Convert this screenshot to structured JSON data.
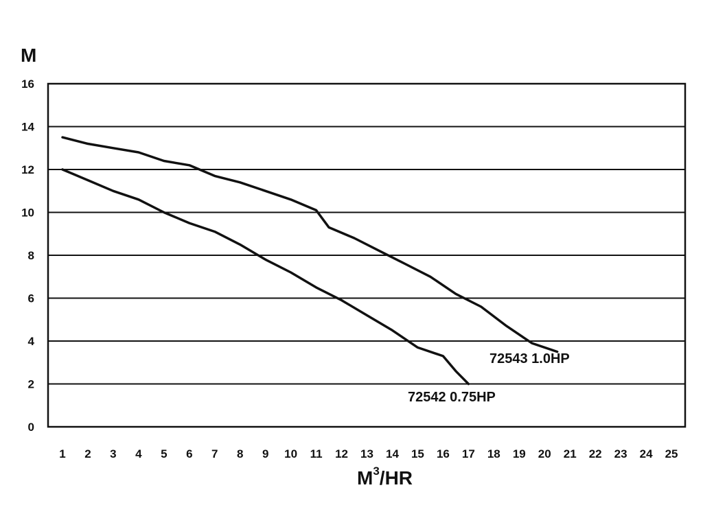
{
  "chart_data": {
    "type": "line",
    "title": "",
    "xlabel_main": "M",
    "xlabel_sup": "3",
    "xlabel_tail": "/HR",
    "ylabel": "M",
    "xlim": [
      0,
      25
    ],
    "ylim": [
      0,
      16
    ],
    "x_ticks": [
      "1",
      "2",
      "3",
      "4",
      "5",
      "6",
      "7",
      "8",
      "9",
      "10",
      "11",
      "12",
      "13",
      "14",
      "15",
      "16",
      "17",
      "18",
      "19",
      "20",
      "21",
      "22",
      "23",
      "24",
      "25"
    ],
    "y_ticks": [
      "0",
      "2",
      "4",
      "6",
      "8",
      "10",
      "12",
      "14",
      "16"
    ],
    "grid": "horizontal",
    "colors": {
      "line": "#111111",
      "grid": "#111111",
      "background": "#ffffff"
    },
    "series": [
      {
        "name": "72543 1.0HP",
        "points": [
          [
            1,
            13.5
          ],
          [
            2,
            13.2
          ],
          [
            3,
            13.0
          ],
          [
            4,
            12.8
          ],
          [
            5,
            12.4
          ],
          [
            6,
            12.2
          ],
          [
            7,
            11.7
          ],
          [
            8,
            11.4
          ],
          [
            9,
            11.0
          ],
          [
            10,
            10.6
          ],
          [
            11,
            10.1
          ],
          [
            11.5,
            9.3
          ],
          [
            12.5,
            8.8
          ],
          [
            13.5,
            8.2
          ],
          [
            14.5,
            7.6
          ],
          [
            15.5,
            7.0
          ],
          [
            16.5,
            6.2
          ],
          [
            17.5,
            5.6
          ],
          [
            18.5,
            4.7
          ],
          [
            19.5,
            3.9
          ],
          [
            20.5,
            3.5
          ]
        ]
      },
      {
        "name": "72542 0.75HP",
        "points": [
          [
            1,
            12.0
          ],
          [
            2,
            11.5
          ],
          [
            3,
            11.0
          ],
          [
            4,
            10.6
          ],
          [
            5,
            10.0
          ],
          [
            6,
            9.5
          ],
          [
            7,
            9.1
          ],
          [
            8,
            8.5
          ],
          [
            9,
            7.8
          ],
          [
            10,
            7.2
          ],
          [
            11,
            6.5
          ],
          [
            12,
            5.9
          ],
          [
            13,
            5.2
          ],
          [
            14,
            4.5
          ],
          [
            15,
            3.7
          ],
          [
            16,
            3.3
          ],
          [
            16.5,
            2.6
          ],
          [
            17,
            2.0
          ]
        ]
      }
    ]
  }
}
